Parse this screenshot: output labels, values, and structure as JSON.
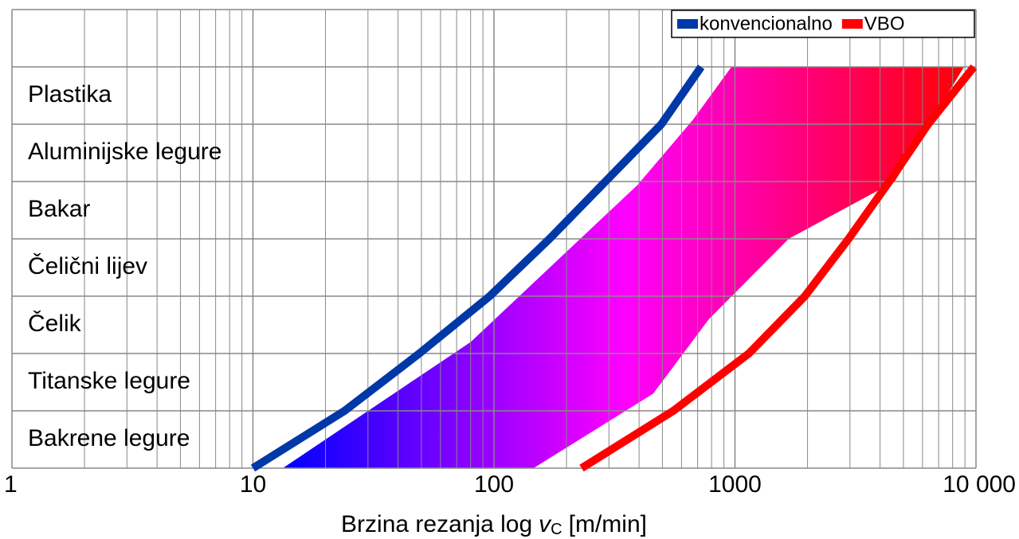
{
  "chart_data": {
    "type": "line",
    "xlabel": {
      "text": "Brzina rezanja log",
      "var": "v",
      "sub": "C",
      "unit": "[m/min]"
    },
    "categories": [
      "Bakrene legure",
      "Titanske legure",
      "Čelik",
      "Čelični lijev",
      "Bakar",
      "Aluminijske legure",
      "Plastika",
      null
    ],
    "xscale": "log",
    "xlim": [
      1,
      10000
    ],
    "xticks": [
      1,
      10,
      100,
      1000,
      {
        "value": 10000,
        "label": "10 000"
      }
    ],
    "ylim": [
      0,
      8
    ],
    "grid": true,
    "legend": "upper right",
    "series": [
      {
        "name": "konvencionalno",
        "color": "#0038a8",
        "x": [
          10,
          24,
          49,
          96,
          170,
          290,
          495,
          724
        ],
        "y": [
          0,
          1,
          2,
          3,
          4,
          5,
          6,
          7
        ]
      },
      {
        "name": "VBO",
        "color": "#ff0000",
        "x": [
          231,
          555,
          1142,
          1950,
          2960,
          4370,
          6330,
          9800
        ],
        "y": [
          0,
          1,
          2,
          3,
          4,
          5,
          6,
          7
        ]
      }
    ],
    "region": {
      "x": [
        13.3,
        80,
        394,
        670,
        967,
        8920,
        4600,
        1670,
        780,
        458,
        146
      ],
      "y": [
        0,
        2.2,
        4.94,
        6.08,
        7,
        7,
        5,
        4,
        2.6,
        1.3,
        0
      ],
      "colors": [
        "#0000ff",
        "#ff00ff",
        "#ff0000"
      ]
    }
  }
}
